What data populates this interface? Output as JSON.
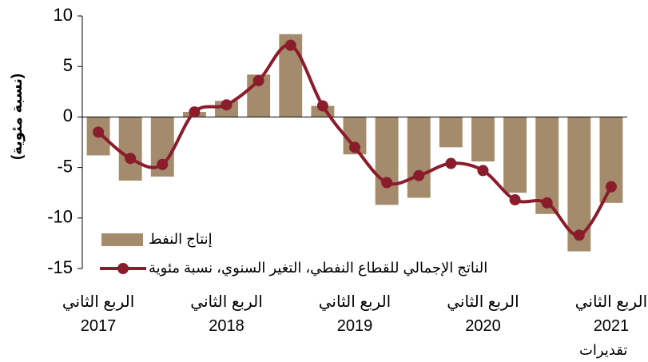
{
  "chart_data": {
    "type": "bar_line",
    "ylabel": "(نسبة مئوية)",
    "categories": [
      "الربع الثاني\n2017",
      null,
      null,
      null,
      "الربع الثاني\n2018",
      null,
      null,
      null,
      "الربع الثاني\n2019",
      null,
      null,
      null,
      "الربع الثاني\n2020",
      null,
      null,
      null,
      "الربع الثاني\n2021"
    ],
    "annotation": "تقديرات",
    "series": [
      {
        "name": "إنتاج النفط",
        "kind": "bar",
        "color": "#a38b6b",
        "values": [
          -3.8,
          -6.3,
          -5.9,
          0.5,
          1.6,
          4.2,
          8.2,
          1.1,
          -3.7,
          -8.7,
          -8.0,
          -3.0,
          -4.4,
          -7.5,
          -9.6,
          -13.3,
          -8.5
        ]
      },
      {
        "name": "الناتج الإجمالي للقطاع النفطي، التغير السنوي، نسبة مئوية",
        "kind": "line",
        "color": "#8b1c2c",
        "values": [
          -1.5,
          -4.1,
          -4.7,
          0.5,
          1.2,
          3.6,
          7.1,
          1.1,
          -3.0,
          -6.5,
          -5.8,
          -4.6,
          -5.3,
          -8.2,
          -8.5,
          -11.7,
          -6.9
        ]
      }
    ],
    "ylim": [
      -15,
      10
    ],
    "yticks": [
      -15,
      -10,
      -5,
      0,
      5,
      10
    ],
    "grid": false,
    "legend": "lower left"
  }
}
